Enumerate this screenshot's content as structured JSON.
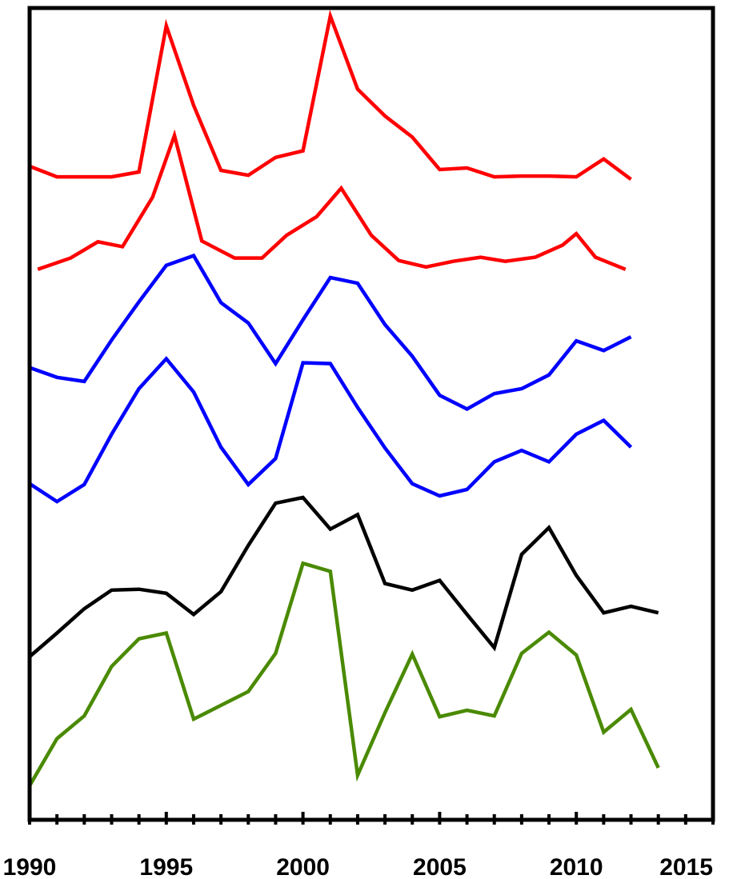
{
  "chart_data": {
    "type": "line",
    "title": "",
    "xlabel": "",
    "ylabel": "",
    "xlim": [
      1990,
      2015
    ],
    "ylim": [
      0,
      1000
    ],
    "x_ticks": [
      1990,
      1995,
      2000,
      2005,
      2010,
      2015
    ],
    "x_tick_labels": [
      "1990",
      "1995",
      "2000",
      "2005",
      "2010",
      "2015"
    ],
    "minor_ticks_every": 1,
    "y_axis_labels_shown": false,
    "legend": "none",
    "grid": false,
    "series": [
      {
        "color": "#ff0000",
        "x": [
          1990,
          1991,
          1992,
          1993,
          1994,
          1995,
          1996,
          1997,
          1998,
          1999,
          2000,
          2001,
          2002,
          2003,
          2004,
          2005,
          2006,
          2007,
          2008,
          2009,
          2010,
          2011,
          2012
        ],
        "y": [
          805,
          792,
          792,
          792,
          798,
          978,
          880,
          800,
          794,
          816,
          824,
          990,
          900,
          867,
          841,
          801,
          803,
          792,
          793,
          793,
          792,
          814,
          789
        ]
      },
      {
        "color": "#ff0000",
        "x": [
          1990.3,
          1991.5,
          1992.5,
          1993.4,
          1994.5,
          1995.3,
          1996.3,
          1997.5,
          1998.5,
          1999.4,
          2000.5,
          2001.4,
          2002.5,
          2003.5,
          2004.5,
          2005.5,
          2006.5,
          2007.4,
          2008.5,
          2009.5,
          2010,
          2010.7,
          2011.8
        ],
        "y": [
          678,
          692,
          712,
          706,
          767,
          843,
          713,
          692,
          692,
          720,
          743,
          778,
          720,
          689,
          681,
          688,
          693,
          688,
          693,
          708,
          722,
          693,
          678
        ]
      },
      {
        "color": "#0000ff",
        "x": [
          1990,
          1991,
          1992,
          1993,
          1994,
          1995,
          1996,
          1997,
          1998,
          1999,
          2000,
          2001,
          2002,
          2003,
          2004,
          2005,
          2006,
          2007,
          2008,
          2009,
          2010,
          2011,
          2012
        ],
        "y": [
          557,
          545,
          540,
          591,
          638,
          683,
          695,
          637,
          612,
          562,
          616,
          668,
          661,
          610,
          571,
          523,
          506,
          525,
          531,
          548,
          590,
          578,
          595
        ]
      },
      {
        "color": "#0000ff",
        "x": [
          1990,
          1991,
          1992,
          1993,
          1994,
          1995,
          1996,
          1997,
          1998,
          1999,
          2000,
          2001,
          2002,
          2003,
          2004,
          2005,
          2006,
          2007,
          2008,
          2009,
          2010,
          2011,
          2012
        ],
        "y": [
          414,
          392,
          413,
          475,
          531,
          568,
          527,
          459,
          413,
          445,
          563,
          562,
          508,
          458,
          414,
          399,
          407,
          441,
          455,
          441,
          475,
          492,
          459
        ]
      },
      {
        "color": "#000000",
        "x": [
          1990,
          1991,
          1992,
          1993,
          1994,
          1995,
          1996,
          1997,
          1998,
          1999,
          2000,
          2001,
          2002,
          2003,
          2004,
          2005,
          2006,
          2007,
          2008,
          2009,
          2010,
          2011,
          2012,
          2013
        ],
        "y": [
          201,
          230,
          260,
          283,
          284,
          279,
          253,
          281,
          338,
          390,
          397,
          358,
          376,
          291,
          283,
          295,
          253,
          212,
          327,
          360,
          301,
          255,
          263,
          255
        ]
      },
      {
        "color": "#4a8a00",
        "x": [
          1990,
          1991,
          1992,
          1993,
          1994,
          1995,
          1996,
          1997,
          1998,
          1999,
          2000,
          2001,
          2002,
          2003,
          2004,
          2005,
          2006,
          2007,
          2008,
          2009,
          2010,
          2011,
          2012,
          2013
        ],
        "y": [
          42,
          100,
          128,
          189,
          223,
          230,
          124,
          141,
          158,
          205,
          316,
          306,
          55,
          132,
          204,
          127,
          135,
          128,
          205,
          231,
          203,
          108,
          136,
          64
        ]
      }
    ]
  }
}
